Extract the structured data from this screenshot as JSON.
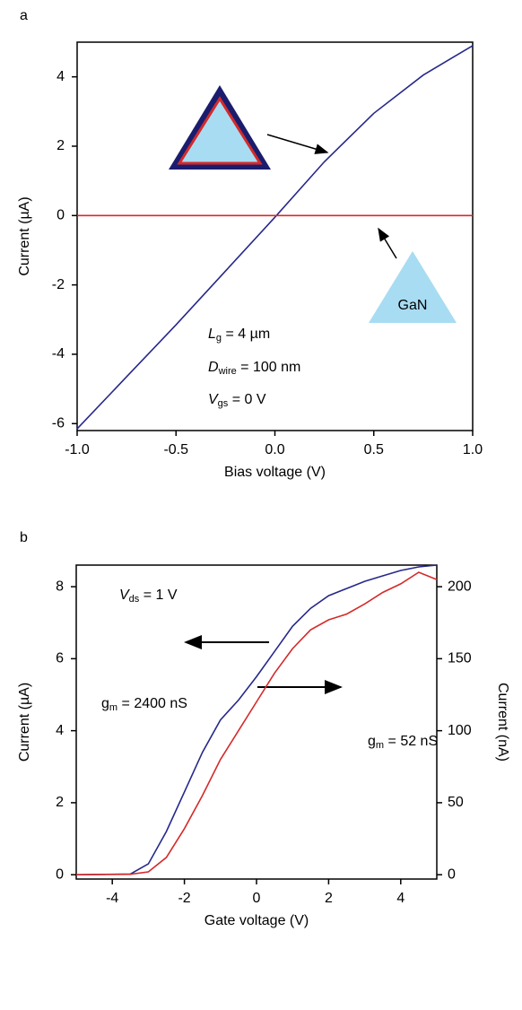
{
  "chart_data": [
    {
      "type": "line",
      "panel": "a",
      "xlabel": "Bias voltage (V)",
      "ylabel": "Current (µA)",
      "x": [
        -1,
        -0.75,
        -0.5,
        -0.25,
        0,
        0.25,
        0.5,
        0.75,
        1
      ],
      "series": [
        {
          "color": "#26288a",
          "values": [
            -6.15,
            -4.65,
            -3.15,
            -1.6,
            -0.05,
            1.55,
            2.95,
            4.05,
            4.9
          ]
        },
        {
          "color": "#d42a2a",
          "values": [
            0,
            0,
            0,
            0,
            0,
            0,
            0,
            0,
            0
          ]
        }
      ],
      "xlim": [
        -1,
        1
      ],
      "ylim": [
        -6.2,
        5.0
      ],
      "xticks": [
        {
          "value": -1,
          "label": "-1.0"
        },
        {
          "value": -0.5,
          "label": "-0.5"
        },
        {
          "value": 0,
          "label": "0.0"
        },
        {
          "value": 0.5,
          "label": "0.5"
        },
        {
          "value": 1,
          "label": "1.0"
        }
      ],
      "yticks": [
        -6,
        -4,
        -2,
        0,
        2,
        4
      ],
      "annotations": [
        [
          "GaN"
        ],
        [
          "L",
          "g",
          " = 4 µm"
        ],
        [
          "D",
          "wire",
          " = 100 nm"
        ],
        [
          "V",
          "gs",
          " = 0 V"
        ]
      ]
    },
    {
      "type": "line",
      "panel": "b",
      "xlabel": "Gate voltage (V)",
      "ylabel": "Current (µA)",
      "y2label": "Current (nA)",
      "x": [
        -5,
        -3.5,
        -3,
        -2.5,
        -2,
        -1.5,
        -1,
        -0.5,
        0,
        0.5,
        1,
        1.5,
        2,
        2.5,
        3,
        3.5,
        4,
        4.5,
        5
      ],
      "series": [
        {
          "color": "#26288a",
          "values": [
            0,
            0.02,
            0.3,
            1.2,
            2.3,
            3.4,
            4.3,
            4.85,
            5.5,
            6.2,
            6.9,
            7.4,
            7.75,
            7.95,
            8.15,
            8.3,
            8.45,
            8.55,
            8.6
          ]
        },
        {
          "color": "#d42a2a",
          "axis": "y2",
          "values": [
            0,
            0.3,
            2,
            12,
            32,
            55,
            80,
            100,
            120,
            140,
            157,
            170,
            177,
            181,
            188,
            196,
            202,
            210,
            205
          ]
        }
      ],
      "xlim": [
        -5,
        5
      ],
      "ylim": [
        -0.12,
        8.6
      ],
      "y2lim": [
        -3,
        215
      ],
      "xticks": [
        -4,
        -2,
        0,
        2,
        4
      ],
      "yticks": [
        0,
        2,
        4,
        6,
        8
      ],
      "y2ticks": [
        0,
        50,
        100,
        150,
        200
      ],
      "annotations": [
        [
          "V",
          "ds",
          " = 1 V"
        ],
        [
          "g",
          "m",
          " = 2400 nS"
        ],
        [
          "g",
          "m",
          " = 52 nS"
        ]
      ]
    }
  ]
}
